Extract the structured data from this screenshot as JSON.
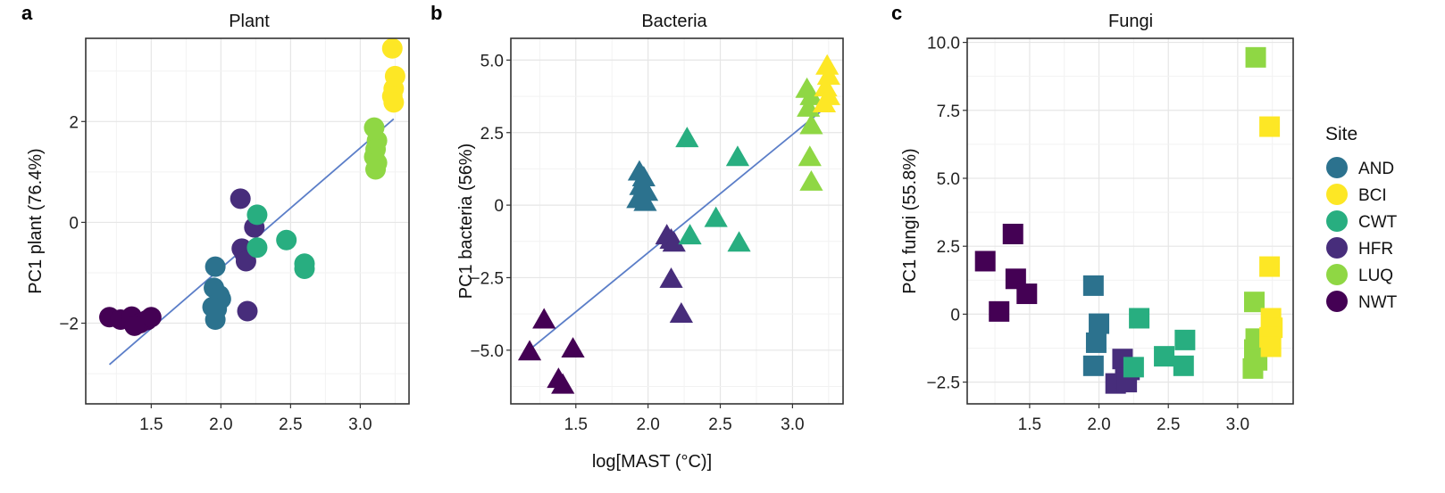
{
  "figure": {
    "x_axis_label": "log[MAST (°C)]",
    "legend_title": "Site",
    "sites": [
      {
        "name": "AND",
        "color": "#2C728E"
      },
      {
        "name": "BCI",
        "color": "#FDE725"
      },
      {
        "name": "CWT",
        "color": "#28AE80"
      },
      {
        "name": "HFR",
        "color": "#472D7B"
      },
      {
        "name": "LUQ",
        "color": "#8FD744"
      },
      {
        "name": "NWT",
        "color": "#440154"
      }
    ]
  },
  "chart_data": [
    {
      "type": "scatter",
      "panel_letter": "a",
      "title": "Plant",
      "marker": "circle",
      "ylabel": "PC1 plant (76.4%)",
      "xlim": [
        1.03,
        3.35
      ],
      "ylim": [
        -3.6,
        3.65
      ],
      "xticks": [
        1.5,
        2.0,
        2.5,
        3.0
      ],
      "yticks": [
        -2,
        0,
        2
      ],
      "yticklabels": [
        "−2",
        "0",
        "2"
      ],
      "grid": true,
      "fit_line": {
        "x": [
          1.2,
          3.24
        ],
        "y": [
          -2.82,
          2.05
        ]
      },
      "series": [
        {
          "name": "NWT",
          "x": [
            1.2,
            1.28,
            1.36,
            1.42,
            1.47,
            1.5,
            1.38
          ],
          "y": [
            -1.88,
            -1.93,
            -1.87,
            -2.0,
            -1.94,
            -1.88,
            -2.05
          ]
        },
        {
          "name": "AND",
          "x": [
            1.96,
            1.95,
            1.99,
            2.0,
            1.94,
            1.97,
            1.96
          ],
          "y": [
            -0.88,
            -1.3,
            -1.45,
            -1.52,
            -1.68,
            -1.72,
            -1.93
          ]
        },
        {
          "name": "HFR",
          "x": [
            2.14,
            2.24,
            2.15,
            2.17,
            2.18,
            2.19
          ],
          "y": [
            0.47,
            -0.1,
            -0.52,
            -0.62,
            -0.77,
            -1.76
          ]
        },
        {
          "name": "CWT",
          "x": [
            2.26,
            2.26,
            2.47,
            2.6,
            2.6
          ],
          "y": [
            0.15,
            -0.5,
            -0.35,
            -0.82,
            -0.92
          ]
        },
        {
          "name": "LUQ",
          "x": [
            3.1,
            3.12,
            3.11,
            3.1,
            3.12,
            3.11
          ],
          "y": [
            1.88,
            1.62,
            1.45,
            1.3,
            1.18,
            1.05
          ]
        },
        {
          "name": "BCI",
          "x": [
            3.23,
            3.25,
            3.24,
            3.23,
            3.24
          ],
          "y": [
            3.45,
            2.9,
            2.65,
            2.5,
            2.38
          ]
        }
      ]
    },
    {
      "type": "scatter",
      "panel_letter": "b",
      "title": "Bacteria",
      "marker": "triangle",
      "ylabel": "PC1 bacteria (56%)",
      "xlim": [
        1.05,
        3.35
      ],
      "ylim": [
        -6.85,
        5.75
      ],
      "xticks": [
        1.5,
        2.0,
        2.5,
        3.0
      ],
      "yticks": [
        -5.0,
        -2.5,
        0,
        2.5,
        5.0
      ],
      "yticklabels": [
        "−5.0",
        "−2.5",
        "0",
        "2.5",
        "5.0"
      ],
      "grid": true,
      "fit_line": {
        "x": [
          1.2,
          3.2
        ],
        "y": [
          -4.9,
          3.25
        ]
      },
      "series": [
        {
          "name": "NWT",
          "x": [
            1.18,
            1.28,
            1.48,
            1.38,
            1.41
          ],
          "y": [
            -5.05,
            -3.95,
            -4.95,
            -6.0,
            -6.2
          ]
        },
        {
          "name": "AND",
          "x": [
            1.94,
            1.97,
            1.95,
            1.99,
            1.93,
            1.98
          ],
          "y": [
            1.15,
            0.95,
            0.65,
            0.45,
            0.2,
            0.1
          ]
        },
        {
          "name": "HFR",
          "x": [
            2.13,
            2.16,
            2.18,
            2.16,
            2.23
          ],
          "y": [
            -1.05,
            -1.2,
            -1.3,
            -2.55,
            -3.75
          ]
        },
        {
          "name": "CWT",
          "x": [
            2.27,
            2.29,
            2.47,
            2.62,
            2.63
          ],
          "y": [
            2.3,
            -1.05,
            -0.45,
            1.65,
            -1.3
          ]
        },
        {
          "name": "LUQ",
          "x": [
            3.1,
            3.13,
            3.11,
            3.13,
            3.12,
            3.13
          ],
          "y": [
            4.0,
            3.75,
            3.35,
            2.75,
            1.65,
            0.8
          ]
        },
        {
          "name": "BCI",
          "x": [
            3.24,
            3.25,
            3.23,
            3.25,
            3.22
          ],
          "y": [
            4.8,
            4.45,
            4.05,
            3.75,
            3.5
          ]
        }
      ]
    },
    {
      "type": "scatter",
      "panel_letter": "c",
      "title": "Fungi",
      "marker": "square",
      "ylabel": "PC1 fungi (55.8%)",
      "xlim": [
        1.05,
        3.4
      ],
      "ylim": [
        -3.3,
        10.15
      ],
      "xticks": [
        1.5,
        2.0,
        2.5,
        3.0
      ],
      "yticks": [
        -2.5,
        0,
        2.5,
        5.0,
        7.5,
        10.0
      ],
      "yticklabels": [
        "−2.5",
        "0",
        "2.5",
        "5.0",
        "7.5",
        "10.0"
      ],
      "grid": true,
      "series": [
        {
          "name": "NWT",
          "x": [
            1.18,
            1.38,
            1.28,
            1.4,
            1.48
          ],
          "y": [
            1.95,
            2.95,
            0.1,
            1.3,
            0.75
          ]
        },
        {
          "name": "AND",
          "x": [
            1.96,
            2.0,
            1.98,
            1.96
          ],
          "y": [
            1.05,
            -0.35,
            -1.05,
            -1.9
          ]
        },
        {
          "name": "HFR",
          "x": [
            2.12,
            2.17,
            2.22,
            2.19,
            2.2
          ],
          "y": [
            -2.55,
            -1.65,
            -2.05,
            -2.35,
            -2.5
          ]
        },
        {
          "name": "CWT",
          "x": [
            2.29,
            2.47,
            2.62,
            2.61,
            2.25
          ],
          "y": [
            -0.15,
            -1.55,
            -0.95,
            -1.9,
            -1.95
          ]
        },
        {
          "name": "LUQ",
          "x": [
            3.13,
            3.12,
            3.13,
            3.12,
            3.14,
            3.11
          ],
          "y": [
            9.45,
            0.45,
            -0.9,
            -1.3,
            -1.7,
            -2.0
          ]
        },
        {
          "name": "BCI",
          "x": [
            3.23,
            3.23,
            3.24,
            3.25,
            3.23,
            3.24
          ],
          "y": [
            6.9,
            1.75,
            -0.15,
            -0.5,
            -0.85,
            -1.2
          ]
        }
      ]
    }
  ]
}
